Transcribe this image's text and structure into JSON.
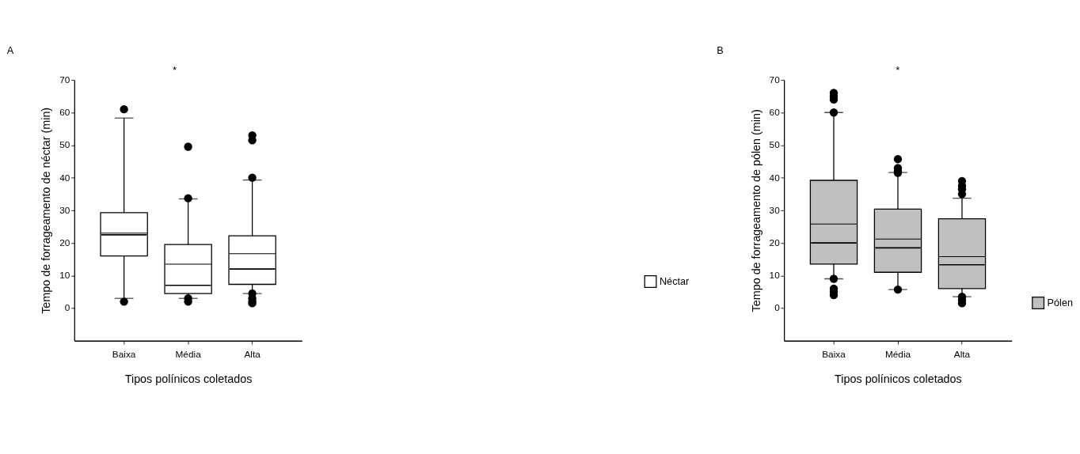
{
  "chart_data": [
    {
      "type": "box",
      "title": "A",
      "xlabel": "Tipos polínicos coletados",
      "ylabel": "Tempo de forrageamento de néctar (min)",
      "categories": [
        "Baixa",
        "Média",
        "Alta"
      ],
      "ylim": [
        -10,
        70
      ],
      "yticks": [
        0,
        10,
        20,
        30,
        40,
        50,
        60,
        70
      ],
      "grid": false,
      "legend": "right",
      "annotations": [
        "*"
      ],
      "series": [
        {
          "name": "Néctar",
          "color": "#ffffff",
          "boxes": [
            {
              "low": 3,
              "q1": 16,
              "median": 22.5,
              "q3": 29.3,
              "high": 58.3,
              "mean": 23,
              "outliers": [
                61,
                2
              ]
            },
            {
              "low": 3,
              "q1": 4.5,
              "median": 7,
              "q3": 19.5,
              "high": 33.5,
              "mean": 13.5,
              "outliers": [
                49.5,
                33.7,
                3,
                2
              ]
            },
            {
              "low": 4.5,
              "q1": 7.3,
              "median": 12,
              "q3": 22.2,
              "high": 39.3,
              "mean": 16.7,
              "outliers": [
                53,
                51.5,
                40,
                4.5,
                3,
                2,
                1.5
              ]
            }
          ]
        }
      ]
    },
    {
      "type": "box",
      "title": "B",
      "xlabel": "Tipos polínicos coletados",
      "ylabel": "Tempo de forrageamento de pólen (min)",
      "categories": [
        "Baixa",
        "Média",
        "Alta"
      ],
      "ylim": [
        -10,
        70
      ],
      "yticks": [
        0,
        10,
        20,
        30,
        40,
        50,
        60,
        70
      ],
      "grid": false,
      "legend": "right",
      "annotations": [
        "*"
      ],
      "series": [
        {
          "name": "Pólen",
          "color": "#c0c0c0",
          "boxes": [
            {
              "low": 9,
              "q1": 13.5,
              "median": 20,
              "q3": 39.2,
              "high": 60,
              "mean": 25.8,
              "outliers": [
                66,
                65,
                64,
                60,
                9,
                6,
                5,
                4
              ]
            },
            {
              "low": 5.7,
              "q1": 11,
              "median": 18.5,
              "q3": 30.4,
              "high": 41.6,
              "mean": 21.2,
              "outliers": [
                45.7,
                43,
                42,
                41.5,
                5.7
              ]
            },
            {
              "low": 3.5,
              "q1": 6,
              "median": 13.3,
              "q3": 27.4,
              "high": 33.7,
              "mean": 15.8,
              "outliers": [
                39,
                37.5,
                36.5,
                35,
                3.5,
                2.5,
                1.5
              ]
            }
          ]
        }
      ]
    }
  ]
}
